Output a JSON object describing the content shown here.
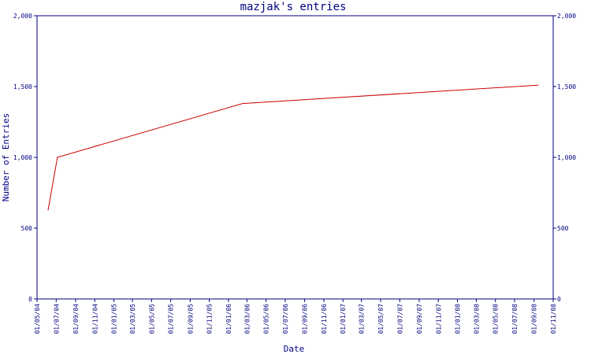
{
  "chart_data": {
    "type": "line",
    "title": "mazjak's entries",
    "xlabel": "Date",
    "ylabel": "Number of Entries",
    "x_ticks": [
      "01/05/04",
      "01/07/04",
      "01/09/04",
      "01/11/04",
      "01/01/05",
      "01/03/05",
      "01/05/05",
      "01/07/05",
      "01/09/05",
      "01/11/05",
      "01/01/06",
      "01/03/06",
      "01/05/06",
      "01/07/06",
      "01/09/06",
      "01/11/06",
      "01/01/07",
      "01/03/07",
      "01/05/07",
      "01/07/07",
      "01/09/07",
      "01/11/07",
      "01/01/08",
      "01/03/08",
      "01/05/08",
      "01/07/08",
      "01/09/08",
      "01/11/08"
    ],
    "y_ticks": [
      0,
      500,
      1000,
      1500,
      2000
    ],
    "y_tick_labels": [
      "0",
      "500",
      "1,000",
      "1,500",
      "2,000"
    ],
    "ylim": [
      0,
      2000
    ],
    "xlim": [
      "2004-05-01",
      "2008-11-01"
    ],
    "grid": false,
    "series": [
      {
        "color": "#cc0000",
        "points": [
          {
            "x": "2004-06-05",
            "y": 625
          },
          {
            "x": "2004-07-05",
            "y": 1000
          },
          {
            "x": "2006-02-15",
            "y": 1380
          },
          {
            "x": "2008-09-15",
            "y": 1510
          }
        ]
      }
    ]
  },
  "colors": {
    "axis": "#000080",
    "line": "#cc0000"
  }
}
